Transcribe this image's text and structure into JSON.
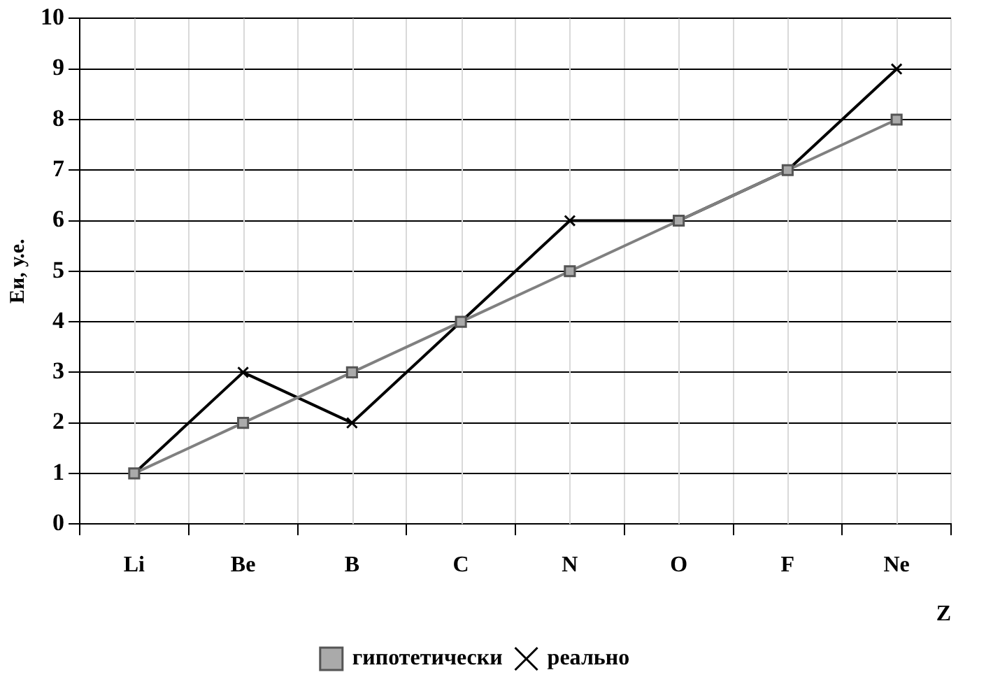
{
  "chart_data": {
    "type": "line",
    "xlabel": "Z",
    "ylabel": "Еи, у.е.",
    "categories": [
      "Li",
      "Be",
      "B",
      "C",
      "N",
      "O",
      "F",
      "Ne"
    ],
    "series": [
      {
        "name": "гипотетически",
        "color": "#808080",
        "marker": "square",
        "values": [
          1,
          2,
          3,
          4,
          5,
          6,
          7,
          8
        ]
      },
      {
        "name": "реально",
        "color": "#000000",
        "marker": "cross",
        "values": [
          1,
          3,
          2,
          4,
          6,
          6,
          7,
          9
        ]
      }
    ],
    "ylim": [
      0,
      10
    ],
    "yticks": [
      0,
      1,
      2,
      3,
      4,
      5,
      6,
      7,
      8,
      9,
      10
    ],
    "grid": true,
    "legend": "bottom",
    "line_style": "solid"
  }
}
